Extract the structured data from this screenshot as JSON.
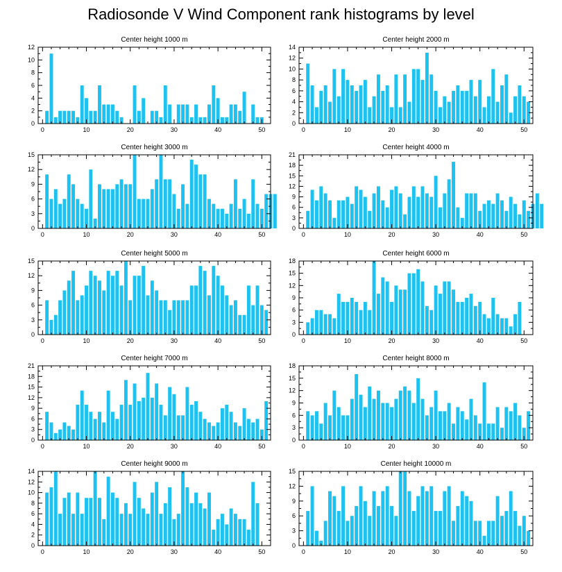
{
  "title": "Radiosonde V Wind Component rank histograms by level",
  "colors": {
    "bar": "#1ec2f0",
    "axis": "#000000",
    "background": "#ffffff"
  },
  "chart_data": [
    {
      "type": "bar",
      "title": "Center height 1000 m",
      "xlim": [
        -1,
        52
      ],
      "ylim": [
        0,
        12
      ],
      "xticks": [
        0,
        10,
        20,
        30,
        40,
        50
      ],
      "yticks": [
        0,
        2,
        4,
        6,
        8,
        10,
        12
      ],
      "x_start": 1,
      "values": [
        2,
        11,
        1,
        2,
        2,
        2,
        2,
        1,
        6,
        4,
        2,
        2,
        6,
        3,
        3,
        3,
        2,
        1,
        0,
        0,
        6,
        2,
        4,
        0,
        2,
        2,
        1,
        6,
        3,
        0,
        3,
        3,
        3,
        1,
        3,
        1,
        1,
        3,
        6,
        4,
        1,
        1,
        3,
        3,
        2,
        5,
        0,
        3,
        1,
        1
      ]
    },
    {
      "type": "bar",
      "title": "Center height 2000 m",
      "xlim": [
        -1,
        52
      ],
      "ylim": [
        0,
        14
      ],
      "xticks": [
        0,
        10,
        20,
        30,
        40,
        50
      ],
      "yticks": [
        0,
        2,
        4,
        6,
        8,
        10,
        12,
        14
      ],
      "x_start": 1,
      "values": [
        11,
        7,
        3,
        6,
        7,
        4,
        10,
        5,
        10,
        8,
        7,
        6,
        7,
        8,
        3,
        5,
        9,
        6,
        7,
        3,
        9,
        3,
        9,
        4,
        10,
        10,
        8,
        13,
        9,
        6,
        3,
        5,
        4,
        6,
        7,
        6,
        6,
        8,
        5,
        8,
        3,
        5,
        10,
        4,
        7,
        9,
        2,
        5,
        7,
        5,
        4
      ]
    },
    {
      "type": "bar",
      "title": "Center height 3000 m",
      "xlim": [
        -1,
        52
      ],
      "ylim": [
        0,
        15
      ],
      "xticks": [
        0,
        10,
        20,
        30,
        40,
        50
      ],
      "yticks": [
        0,
        3,
        6,
        9,
        12,
        15
      ],
      "x_start": 1,
      "values": [
        11,
        6,
        8,
        5,
        6,
        11,
        9,
        6,
        5,
        4,
        12,
        2,
        9,
        8,
        8,
        8,
        9,
        10,
        9,
        9,
        15,
        6,
        6,
        6,
        8,
        10,
        15,
        10,
        10,
        7,
        4,
        9,
        5,
        14,
        13,
        11,
        11,
        6,
        5,
        4,
        4,
        3,
        5,
        10,
        4,
        6,
        3,
        10,
        5,
        4,
        7,
        7,
        7
      ]
    },
    {
      "type": "bar",
      "title": "Center height 4000 m",
      "xlim": [
        -1,
        52
      ],
      "ylim": [
        0,
        21
      ],
      "xticks": [
        0,
        10,
        20,
        30,
        40,
        50
      ],
      "yticks": [
        0,
        3,
        6,
        9,
        12,
        15,
        18,
        21
      ],
      "x_start": 1,
      "values": [
        5,
        11,
        8,
        12,
        10,
        8,
        3,
        8,
        8,
        9,
        7,
        12,
        11,
        9,
        5,
        10,
        12,
        8,
        6,
        11,
        12,
        10,
        4,
        9,
        12,
        9,
        12,
        10,
        9,
        15,
        6,
        10,
        14,
        19,
        6,
        3,
        10,
        10,
        10,
        5,
        7,
        8,
        7,
        10,
        8,
        5,
        9,
        7,
        4,
        8,
        5,
        7,
        10,
        7
      ]
    },
    {
      "type": "bar",
      "title": "Center height 5000 m",
      "xlim": [
        -1,
        52
      ],
      "ylim": [
        0,
        15
      ],
      "xticks": [
        0,
        10,
        20,
        30,
        40,
        50
      ],
      "yticks": [
        0,
        3,
        6,
        9,
        12,
        15
      ],
      "x_start": 1,
      "values": [
        7,
        3,
        4,
        7,
        9,
        11,
        13,
        7,
        8,
        10,
        13,
        12,
        11,
        9,
        13,
        12,
        13,
        10,
        15,
        7,
        12,
        12,
        14,
        8,
        11,
        9,
        7,
        7,
        5,
        7,
        7,
        7,
        7,
        10,
        10,
        14,
        13,
        8,
        14,
        12,
        10,
        8,
        6,
        7,
        4,
        4,
        10,
        6,
        10,
        6,
        5
      ]
    },
    {
      "type": "bar",
      "title": "Center height 6000 m",
      "xlim": [
        -1,
        52
      ],
      "ylim": [
        0,
        18
      ],
      "xticks": [
        0,
        10,
        20,
        30,
        40,
        50
      ],
      "yticks": [
        0,
        3,
        6,
        9,
        12,
        15,
        18
      ],
      "x_start": 1,
      "values": [
        3,
        4,
        6,
        6,
        5,
        5,
        4,
        10,
        8,
        8,
        9,
        8,
        6,
        8,
        6,
        18,
        10,
        14,
        13,
        8,
        12,
        11,
        11,
        15,
        15,
        16,
        13,
        7,
        6,
        12,
        10,
        13,
        13,
        11,
        8,
        8,
        9,
        10,
        7,
        8,
        5,
        4,
        9,
        5,
        4,
        4,
        2,
        5,
        8
      ]
    },
    {
      "type": "bar",
      "title": "Center height 7000 m",
      "xlim": [
        -1,
        52
      ],
      "ylim": [
        0,
        21
      ],
      "xticks": [
        0,
        10,
        20,
        30,
        40,
        50
      ],
      "yticks": [
        0,
        3,
        6,
        9,
        12,
        15,
        18,
        21
      ],
      "x_start": 1,
      "values": [
        8,
        5,
        2,
        3,
        5,
        4,
        3,
        10,
        14,
        10,
        8,
        6,
        8,
        5,
        14,
        8,
        6,
        10,
        17,
        10,
        16,
        11,
        12,
        19,
        12,
        16,
        10,
        7,
        15,
        13,
        7,
        7,
        15,
        10,
        11,
        8,
        6,
        5,
        4,
        5,
        9,
        10,
        8,
        5,
        4,
        9,
        6,
        5,
        6,
        3,
        11
      ]
    },
    {
      "type": "bar",
      "title": "Center height 8000 m",
      "xlim": [
        -1,
        52
      ],
      "ylim": [
        0,
        18
      ],
      "xticks": [
        0,
        10,
        20,
        30,
        40,
        50
      ],
      "yticks": [
        0,
        3,
        6,
        9,
        12,
        15,
        18
      ],
      "x_start": 1,
      "values": [
        7,
        6,
        7,
        4,
        9,
        6,
        12,
        8,
        6,
        6,
        10,
        16,
        11,
        8,
        13,
        10,
        12,
        9,
        9,
        8,
        10,
        12,
        13,
        12,
        9,
        15,
        10,
        6,
        8,
        12,
        7,
        7,
        9,
        4,
        8,
        7,
        5,
        10,
        6,
        4,
        14,
        4,
        4,
        8,
        3,
        8,
        7,
        9,
        6,
        3,
        7
      ]
    },
    {
      "type": "bar",
      "title": "Center height 9000 m",
      "xlim": [
        -1,
        52
      ],
      "ylim": [
        0,
        14
      ],
      "xticks": [
        0,
        10,
        20,
        30,
        40,
        50
      ],
      "yticks": [
        0,
        2,
        4,
        6,
        8,
        10,
        12,
        14
      ],
      "x_start": 1,
      "values": [
        10,
        11,
        14,
        6,
        9,
        10,
        6,
        10,
        6,
        9,
        9,
        14,
        9,
        5,
        13,
        10,
        9,
        6,
        8,
        6,
        12,
        9,
        7,
        6,
        10,
        12,
        6,
        8,
        11,
        5,
        6,
        14,
        11,
        8,
        10,
        8,
        7,
        10,
        3,
        5,
        6,
        4,
        7,
        6,
        5,
        5,
        3,
        12,
        8
      ]
    },
    {
      "type": "bar",
      "title": "Center height 10000 m",
      "xlim": [
        -1,
        52
      ],
      "ylim": [
        0,
        15
      ],
      "xticks": [
        0,
        10,
        20,
        30,
        40,
        50
      ],
      "yticks": [
        0,
        3,
        6,
        9,
        12,
        15
      ],
      "x_start": 1,
      "values": [
        7,
        12,
        3,
        1,
        5,
        11,
        10,
        7,
        12,
        5,
        6,
        8,
        12,
        9,
        6,
        11,
        8,
        11,
        12,
        8,
        6,
        15,
        15,
        11,
        7,
        10,
        12,
        11,
        12,
        7,
        7,
        11,
        12,
        5,
        8,
        11,
        10,
        9,
        5,
        5,
        2,
        5,
        5,
        10,
        6,
        7,
        11,
        7,
        4,
        6,
        3
      ]
    }
  ]
}
